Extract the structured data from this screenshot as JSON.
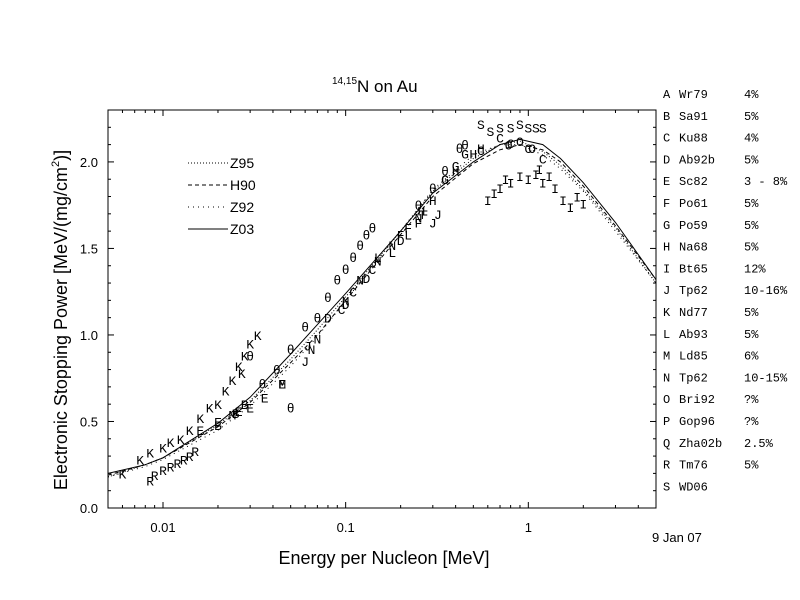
{
  "chart_data": {
    "type": "scatter",
    "title": {
      "prefix": "14,15",
      "main": "N on Au"
    },
    "xlabel": "Energy per Nucleon [MeV]",
    "ylabel": {
      "main": "Electronic Stopping Power [MeV/(mg/cm",
      "sup": "2",
      "tail": ")]"
    },
    "x_scale": "log",
    "xlim": [
      0.005,
      5
    ],
    "ylim": [
      0.0,
      2.3
    ],
    "x_ticks": [
      {
        "value": 0.01,
        "label": "0.01"
      },
      {
        "value": 0.1,
        "label": "0.1"
      },
      {
        "value": 1,
        "label": "1"
      }
    ],
    "y_ticks": [
      {
        "value": 0.0,
        "label": "0.0"
      },
      {
        "value": 0.5,
        "label": "0.5"
      },
      {
        "value": 1.0,
        "label": "1.0"
      },
      {
        "value": 1.5,
        "label": "1.5"
      },
      {
        "value": 2.0,
        "label": "2.0"
      }
    ],
    "date_note": "9 Jan 07",
    "grid": false,
    "curve_legend": [
      {
        "name": "Z95",
        "dash": "1,2"
      },
      {
        "name": "H90",
        "dash": "4,3"
      },
      {
        "name": "Z92",
        "dash": "1,4"
      },
      {
        "name": "Z03",
        "dash": ""
      }
    ],
    "curves": [
      {
        "name": "Z95",
        "dash": "1,2",
        "points": [
          [
            0.005,
            0.18
          ],
          [
            0.008,
            0.25
          ],
          [
            0.01,
            0.29
          ],
          [
            0.02,
            0.48
          ],
          [
            0.03,
            0.62
          ],
          [
            0.05,
            0.86
          ],
          [
            0.07,
            1.03
          ],
          [
            0.1,
            1.22
          ],
          [
            0.2,
            1.6
          ],
          [
            0.3,
            1.83
          ],
          [
            0.5,
            2.02
          ],
          [
            0.7,
            2.1
          ],
          [
            0.9,
            2.12
          ],
          [
            1.2,
            2.06
          ],
          [
            1.5,
            1.98
          ],
          [
            2,
            1.84
          ],
          [
            3,
            1.62
          ],
          [
            5,
            1.3
          ]
        ]
      },
      {
        "name": "H90",
        "dash": "4,3",
        "points": [
          [
            0.005,
            0.19
          ],
          [
            0.008,
            0.25
          ],
          [
            0.01,
            0.29
          ],
          [
            0.02,
            0.47
          ],
          [
            0.03,
            0.61
          ],
          [
            0.05,
            0.84
          ],
          [
            0.07,
            1.0
          ],
          [
            0.1,
            1.2
          ],
          [
            0.2,
            1.58
          ],
          [
            0.3,
            1.8
          ],
          [
            0.5,
            1.99
          ],
          [
            0.7,
            2.07
          ],
          [
            0.9,
            2.1
          ],
          [
            1.2,
            2.07
          ],
          [
            1.5,
            2.0
          ],
          [
            2,
            1.86
          ],
          [
            3,
            1.63
          ],
          [
            5,
            1.32
          ]
        ]
      },
      {
        "name": "Z92",
        "dash": "1,4",
        "points": [
          [
            0.005,
            0.18
          ],
          [
            0.008,
            0.24
          ],
          [
            0.01,
            0.28
          ],
          [
            0.02,
            0.45
          ],
          [
            0.03,
            0.59
          ],
          [
            0.05,
            0.82
          ],
          [
            0.07,
            0.99
          ],
          [
            0.1,
            1.2
          ],
          [
            0.2,
            1.6
          ],
          [
            0.3,
            1.84
          ],
          [
            0.5,
            2.04
          ],
          [
            0.7,
            2.1
          ],
          [
            0.9,
            2.1
          ],
          [
            1.2,
            2.04
          ],
          [
            1.5,
            1.96
          ],
          [
            2,
            1.83
          ],
          [
            3,
            1.6
          ],
          [
            5,
            1.3
          ]
        ]
      },
      {
        "name": "Z03",
        "dash": "",
        "points": [
          [
            0.005,
            0.2
          ],
          [
            0.008,
            0.25
          ],
          [
            0.01,
            0.29
          ],
          [
            0.02,
            0.49
          ],
          [
            0.03,
            0.64
          ],
          [
            0.05,
            0.89
          ],
          [
            0.07,
            1.06
          ],
          [
            0.1,
            1.24
          ],
          [
            0.2,
            1.6
          ],
          [
            0.3,
            1.82
          ],
          [
            0.5,
            2.0
          ],
          [
            0.7,
            2.1
          ],
          [
            0.9,
            2.13
          ],
          [
            1.2,
            2.1
          ],
          [
            1.5,
            2.02
          ],
          [
            2,
            1.88
          ],
          [
            3,
            1.65
          ],
          [
            5,
            1.32
          ]
        ]
      }
    ],
    "points": [
      [
        "K",
        0.006,
        0.2
      ],
      [
        "K",
        0.0075,
        0.28
      ],
      [
        "K",
        0.0085,
        0.32
      ],
      [
        "K",
        0.01,
        0.35
      ],
      [
        "K",
        0.011,
        0.38
      ],
      [
        "K",
        0.0125,
        0.4
      ],
      [
        "K",
        0.014,
        0.45
      ],
      [
        "K",
        0.016,
        0.52
      ],
      [
        "K",
        0.018,
        0.58
      ],
      [
        "K",
        0.02,
        0.6
      ],
      [
        "K",
        0.022,
        0.68
      ],
      [
        "K",
        0.024,
        0.74
      ],
      [
        "K",
        0.026,
        0.82
      ],
      [
        "K",
        0.028,
        0.88
      ],
      [
        "K",
        0.03,
        0.95
      ],
      [
        "K",
        0.033,
        1.0
      ],
      [
        "K",
        0.027,
        0.78
      ],
      [
        "R",
        0.0085,
        0.16
      ],
      [
        "R",
        0.009,
        0.19
      ],
      [
        "R",
        0.01,
        0.22
      ],
      [
        "R",
        0.011,
        0.24
      ],
      [
        "R",
        0.012,
        0.26
      ],
      [
        "R",
        0.013,
        0.28
      ],
      [
        "R",
        0.014,
        0.3
      ],
      [
        "R",
        0.015,
        0.33
      ],
      [
        "E",
        0.016,
        0.45
      ],
      [
        "E",
        0.02,
        0.5
      ],
      [
        "E",
        0.026,
        0.56
      ],
      [
        "E",
        0.03,
        0.58
      ],
      [
        "E",
        0.036,
        0.64
      ],
      [
        "E",
        0.045,
        0.72
      ],
      [
        "B",
        0.02,
        0.48
      ],
      [
        "B",
        0.025,
        0.55
      ],
      [
        "B",
        0.028,
        0.6
      ],
      [
        "M",
        0.024,
        0.54
      ],
      [
        "M",
        0.045,
        0.72
      ],
      [
        "θ",
        0.03,
        0.88
      ],
      [
        "θ",
        0.035,
        0.72
      ],
      [
        "θ",
        0.042,
        0.8
      ],
      [
        "θ",
        0.05,
        0.92
      ],
      [
        "θ",
        0.06,
        1.05
      ],
      [
        "θ",
        0.07,
        1.1
      ],
      [
        "θ",
        0.08,
        1.22
      ],
      [
        "θ",
        0.09,
        1.32
      ],
      [
        "θ",
        0.1,
        1.38
      ],
      [
        "θ",
        0.11,
        1.45
      ],
      [
        "θ",
        0.12,
        1.52
      ],
      [
        "θ",
        0.13,
        1.58
      ],
      [
        "θ",
        0.14,
        1.62
      ],
      [
        "θ",
        0.25,
        1.75
      ],
      [
        "θ",
        0.3,
        1.85
      ],
      [
        "θ",
        0.35,
        1.95
      ],
      [
        "θ",
        0.42,
        2.08
      ],
      [
        "θ",
        0.45,
        2.1
      ],
      [
        "θ",
        0.05,
        0.58
      ],
      [
        "J",
        0.062,
        0.94
      ],
      [
        "J",
        0.3,
        1.65
      ],
      [
        "J",
        0.32,
        1.7
      ],
      [
        "J",
        0.06,
        0.85
      ],
      [
        "N",
        0.065,
        0.92
      ],
      [
        "N",
        0.07,
        0.98
      ],
      [
        "N",
        0.1,
        1.2
      ],
      [
        "N",
        0.12,
        1.32
      ],
      [
        "N",
        0.15,
        1.43
      ],
      [
        "N",
        0.18,
        1.52
      ],
      [
        "N",
        0.25,
        1.68
      ],
      [
        "D",
        0.08,
        1.1
      ],
      [
        "D",
        0.1,
        1.18
      ],
      [
        "D",
        0.13,
        1.33
      ],
      [
        "D",
        0.2,
        1.55
      ],
      [
        "C",
        0.095,
        1.15
      ],
      [
        "C",
        0.11,
        1.25
      ],
      [
        "C",
        0.14,
        1.38
      ],
      [
        "C",
        0.35,
        1.9
      ],
      [
        "C",
        0.55,
        2.07
      ],
      [
        "C",
        0.7,
        2.14
      ],
      [
        "C",
        0.8,
        2.11
      ],
      [
        "C",
        1.0,
        2.08
      ],
      [
        "C",
        1.2,
        2.02
      ],
      [
        "L",
        0.15,
        1.45
      ],
      [
        "L",
        0.18,
        1.48
      ],
      [
        "L",
        0.22,
        1.58
      ],
      [
        "F",
        0.2,
        1.58
      ],
      [
        "F",
        0.22,
        1.62
      ],
      [
        "F",
        0.25,
        1.65
      ],
      [
        "F",
        0.27,
        1.7
      ],
      [
        "H",
        0.26,
        1.72
      ],
      [
        "H",
        0.3,
        1.78
      ],
      [
        "H",
        0.4,
        1.95
      ],
      [
        "H",
        0.5,
        2.05
      ],
      [
        "H",
        0.55,
        2.08
      ],
      [
        "G",
        0.35,
        1.9
      ],
      [
        "G",
        0.4,
        1.98
      ],
      [
        "G",
        0.45,
        2.05
      ],
      [
        "O",
        0.78,
        2.1
      ],
      [
        "O",
        0.9,
        2.12
      ],
      [
        "O",
        1.05,
        2.08
      ],
      [
        "S",
        0.55,
        2.22
      ],
      [
        "S",
        0.62,
        2.18
      ],
      [
        "S",
        0.7,
        2.2
      ],
      [
        "S",
        0.8,
        2.2
      ],
      [
        "S",
        0.9,
        2.22
      ],
      [
        "S",
        1.0,
        2.2
      ],
      [
        "S",
        1.1,
        2.2
      ],
      [
        "S",
        1.2,
        2.2
      ],
      [
        "I",
        0.6,
        1.78
      ],
      [
        "I",
        0.65,
        1.82
      ],
      [
        "I",
        0.7,
        1.85
      ],
      [
        "I",
        0.75,
        1.9
      ],
      [
        "I",
        0.8,
        1.88
      ],
      [
        "I",
        0.9,
        1.92
      ],
      [
        "I",
        1.0,
        1.9
      ],
      [
        "I",
        1.1,
        1.93
      ],
      [
        "I",
        1.2,
        1.88
      ],
      [
        "I",
        1.3,
        1.92
      ],
      [
        "I",
        1.4,
        1.85
      ],
      [
        "I",
        1.55,
        1.78
      ],
      [
        "I",
        1.7,
        1.74
      ],
      [
        "I",
        1.85,
        1.8
      ],
      [
        "I",
        2.0,
        1.76
      ],
      [
        "I",
        1.15,
        1.96
      ]
    ],
    "sources": [
      {
        "letter": "A",
        "code": "Wr79",
        "error": "4%"
      },
      {
        "letter": "B",
        "code": "Sa91",
        "error": "5%"
      },
      {
        "letter": "C",
        "code": "Ku88",
        "error": "4%"
      },
      {
        "letter": "D",
        "code": "Ab92b",
        "error": "5%"
      },
      {
        "letter": "E",
        "code": "Sc82",
        "error": "3 - 8%"
      },
      {
        "letter": "F",
        "code": "Po61",
        "error": "5%"
      },
      {
        "letter": "G",
        "code": "Po59",
        "error": "5%"
      },
      {
        "letter": "H",
        "code": "Na68",
        "error": "5%"
      },
      {
        "letter": "I",
        "code": "Bt65",
        "error": "12%"
      },
      {
        "letter": "J",
        "code": "Tp62",
        "error": "10-16%"
      },
      {
        "letter": "K",
        "code": "Nd77",
        "error": "5%"
      },
      {
        "letter": "L",
        "code": "Ab93",
        "error": "5%"
      },
      {
        "letter": "M",
        "code": "Ld85",
        "error": "6%"
      },
      {
        "letter": "N",
        "code": "Tp62",
        "error": "10-15%"
      },
      {
        "letter": "O",
        "code": "Bri92",
        "error": "?%"
      },
      {
        "letter": "P",
        "code": "Gop96",
        "error": "?%"
      },
      {
        "letter": "Q",
        "code": "Zha02b",
        "error": "2.5%"
      },
      {
        "letter": "R",
        "code": "Tm76",
        "error": "5%"
      },
      {
        "letter": "S",
        "code": "WD06",
        "error": ""
      }
    ]
  }
}
